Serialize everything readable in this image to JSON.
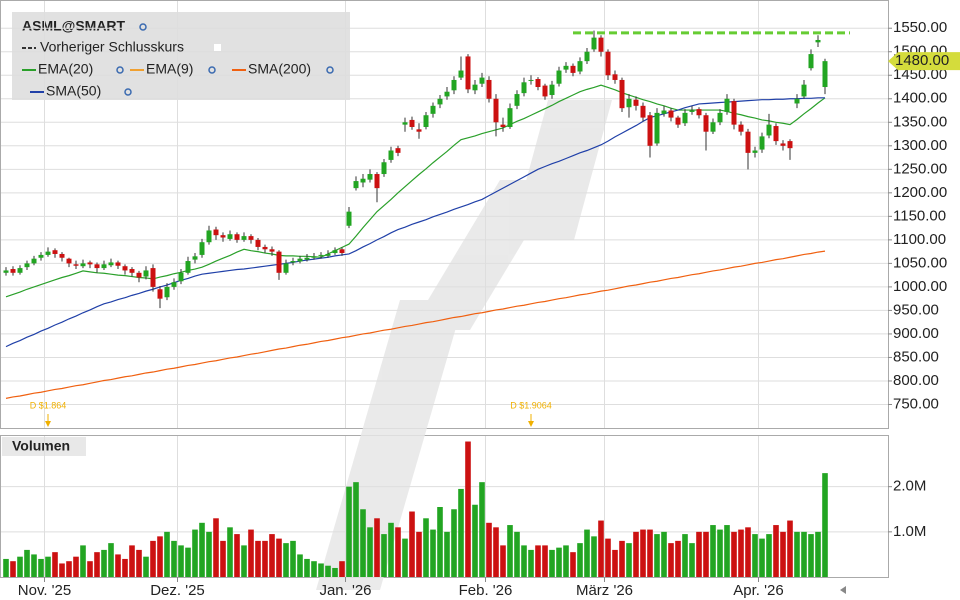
{
  "chart_data": {
    "type": "candlestick",
    "title": "ASML@SMART",
    "grid": true,
    "up_color": "#22a522",
    "down_color": "#cc1111",
    "categories": [
      null,
      null,
      null,
      null,
      null,
      null,
      "Nov. '25",
      null,
      null,
      null,
      null,
      null,
      null,
      null,
      null,
      null,
      null,
      null,
      null,
      null,
      null,
      null,
      null,
      null,
      null,
      "Dez. '25",
      null,
      null,
      null,
      null,
      null,
      null,
      null,
      null,
      null,
      null,
      null,
      null,
      null,
      null,
      null,
      null,
      null,
      null,
      null,
      null,
      null,
      null,
      null,
      "Jan. '26",
      null,
      null,
      null,
      null,
      null,
      null,
      null,
      null,
      null,
      null,
      null,
      null,
      null,
      null,
      null,
      null,
      null,
      null,
      null,
      "Feb. '26",
      null,
      null,
      null,
      null,
      null,
      null,
      null,
      null,
      null,
      null,
      null,
      null,
      null,
      null,
      null,
      null,
      "März '26",
      null,
      null,
      null,
      null,
      null,
      null,
      null,
      null,
      null,
      null,
      null,
      null,
      null,
      null,
      null,
      null,
      null,
      null,
      null,
      null,
      null,
      "Apr. '26",
      null,
      null,
      null,
      null,
      null,
      null,
      null,
      null,
      null
    ],
    "open": [
      1030,
      1038,
      1030,
      1042,
      1050,
      1062,
      1068,
      1078,
      1070,
      1060,
      1048,
      1044,
      1052,
      1048,
      1040,
      1046,
      1052,
      1044,
      1038,
      1030,
      1022,
      1040,
      995,
      978,
      1000,
      1012,
      1030,
      1058,
      1068,
      1095,
      1122,
      1110,
      1102,
      1112,
      1100,
      1108,
      1100,
      1085,
      1080,
      1075,
      1030,
      1052,
      1054,
      1058,
      1062,
      1066,
      1066,
      1072,
      1080,
      1130,
      1210,
      1222,
      1228,
      1240,
      1240,
      1270,
      1295,
      1345,
      1355,
      1335,
      1340,
      1368,
      1388,
      1405,
      1418,
      1445,
      1490,
      1418,
      1432,
      1440,
      1400,
      1345,
      1340,
      1385,
      1412,
      1438,
      1442,
      1428,
      1408,
      1432,
      1462,
      1470,
      1458,
      1480,
      1505,
      1530,
      1500,
      1452,
      1440,
      1382,
      1398,
      1385,
      1365,
      1305,
      1368,
      1375,
      1360,
      1348,
      1372,
      1378,
      1365,
      1330,
      1350,
      1372,
      1395,
      1345,
      1330,
      1285,
      1292,
      1322,
      1342,
      1305,
      1310,
      1390,
      1405,
      1465,
      1520,
      1425
    ],
    "high": [
      1042,
      1044,
      1046,
      1056,
      1066,
      1074,
      1084,
      1082,
      1074,
      1062,
      1056,
      1058,
      1056,
      1052,
      1056,
      1060,
      1056,
      1048,
      1042,
      1034,
      1044,
      1048,
      1002,
      1008,
      1018,
      1038,
      1064,
      1072,
      1102,
      1130,
      1128,
      1116,
      1120,
      1116,
      1116,
      1112,
      1104,
      1090,
      1086,
      1078,
      1058,
      1062,
      1066,
      1070,
      1072,
      1074,
      1078,
      1084,
      1084,
      1170,
      1235,
      1240,
      1250,
      1244,
      1272,
      1298,
      1300,
      1360,
      1362,
      1348,
      1372,
      1392,
      1408,
      1425,
      1448,
      1490,
      1495,
      1440,
      1455,
      1448,
      1410,
      1360,
      1390,
      1418,
      1445,
      1450,
      1446,
      1432,
      1438,
      1468,
      1478,
      1475,
      1488,
      1508,
      1545,
      1535,
      1505,
      1460,
      1445,
      1410,
      1405,
      1392,
      1372,
      1380,
      1385,
      1380,
      1364,
      1378,
      1385,
      1382,
      1370,
      1358,
      1378,
      1410,
      1400,
      1352,
      1336,
      1298,
      1328,
      1368,
      1348,
      1312,
      1314,
      1410,
      1440,
      1505,
      1535,
      1485
    ],
    "low": [
      1024,
      1024,
      1026,
      1036,
      1046,
      1056,
      1064,
      1062,
      1054,
      1042,
      1038,
      1040,
      1040,
      1030,
      1036,
      1042,
      1038,
      1026,
      1022,
      1010,
      1016,
      990,
      955,
      972,
      994,
      1006,
      1026,
      1050,
      1062,
      1090,
      1100,
      1096,
      1098,
      1094,
      1096,
      1092,
      1078,
      1072,
      1066,
      1015,
      1026,
      1046,
      1050,
      1054,
      1058,
      1060,
      1062,
      1068,
      1066,
      1125,
      1205,
      1212,
      1222,
      1180,
      1234,
      1264,
      1278,
      1330,
      1334,
      1315,
      1335,
      1360,
      1380,
      1398,
      1410,
      1440,
      1412,
      1410,
      1425,
      1392,
      1320,
      1330,
      1336,
      1378,
      1405,
      1430,
      1418,
      1398,
      1400,
      1426,
      1455,
      1448,
      1452,
      1474,
      1500,
      1490,
      1440,
      1432,
      1372,
      1360,
      1375,
      1352,
      1275,
      1300,
      1362,
      1352,
      1338,
      1342,
      1366,
      1358,
      1290,
      1325,
      1344,
      1366,
      1335,
      1322,
      1250,
      1275,
      1285,
      1316,
      1302,
      1290,
      1270,
      1380,
      1400,
      1460,
      1510,
      1410
    ],
    "close": [
      1035,
      1030,
      1040,
      1050,
      1060,
      1068,
      1075,
      1070,
      1062,
      1050,
      1045,
      1050,
      1048,
      1040,
      1048,
      1052,
      1045,
      1035,
      1030,
      1020,
      1035,
      1000,
      975,
      1000,
      1010,
      1030,
      1055,
      1065,
      1095,
      1120,
      1110,
      1105,
      1112,
      1100,
      1108,
      1100,
      1085,
      1080,
      1075,
      1030,
      1050,
      1055,
      1060,
      1062,
      1065,
      1068,
      1070,
      1078,
      1072,
      1160,
      1225,
      1230,
      1240,
      1210,
      1265,
      1290,
      1285,
      1350,
      1340,
      1330,
      1365,
      1385,
      1400,
      1415,
      1440,
      1460,
      1420,
      1430,
      1445,
      1400,
      1350,
      1340,
      1380,
      1410,
      1435,
      1440,
      1425,
      1405,
      1430,
      1460,
      1470,
      1455,
      1480,
      1500,
      1530,
      1500,
      1450,
      1440,
      1380,
      1400,
      1385,
      1360,
      1300,
      1370,
      1375,
      1360,
      1345,
      1370,
      1375,
      1365,
      1330,
      1350,
      1370,
      1400,
      1345,
      1330,
      1285,
      1290,
      1320,
      1345,
      1310,
      1300,
      1295,
      1400,
      1430,
      1495,
      1525,
      1480
    ],
    "series": [
      {
        "name": "EMA(20)",
        "color": "#2aa02a",
        "values": [
          979,
          984,
          989,
          995,
          1000,
          1005,
          1010,
          1015,
          1020,
          1024,
          1029,
          1034,
          1032,
          1030,
          1029,
          1027,
          1025,
          1024,
          1022,
          1020,
          1019,
          1017,
          1021,
          1024,
          1028,
          1031,
          1035,
          1038,
          1042,
          1048,
          1055,
          1061,
          1067,
          1074,
          1080,
          1077,
          1075,
          1072,
          1070,
          1067,
          1066,
          1066,
          1065,
          1065,
          1064,
          1063,
          1070,
          1077,
          1084,
          1091,
          1108,
          1126,
          1143,
          1160,
          1173,
          1186,
          1200,
          1213,
          1226,
          1239,
          1251,
          1264,
          1276,
          1288,
          1301,
          1313,
          1317,
          1321,
          1326,
          1330,
          1334,
          1338,
          1345,
          1352,
          1358,
          1365,
          1372,
          1379,
          1386,
          1394,
          1401,
          1408,
          1415,
          1420,
          1424,
          1429,
          1424,
          1419,
          1413,
          1408,
          1403,
          1398,
          1394,
          1389,
          1385,
          1380,
          1376,
          1376,
          1376,
          1376,
          1376,
          1376,
          1376,
          1373,
          1369,
          1366,
          1362,
          1359,
          1355,
          1353,
          1350,
          1348,
          1345,
          1356,
          1368,
          1379,
          1391,
          1402
        ]
      },
      {
        "name": "EMA(9)",
        "color": "#f0a030"
      },
      {
        "name": "SMA(200)",
        "color": "#f06010",
        "values": [
          763,
          766,
          768,
          771,
          774,
          776,
          779,
          782,
          784,
          787,
          790,
          792,
          795,
          798,
          801,
          803,
          806,
          809,
          811,
          814,
          817,
          819,
          822,
          825,
          827,
          830,
          833,
          835,
          838,
          841,
          843,
          846,
          849,
          851,
          854,
          857,
          859,
          862,
          865,
          868,
          870,
          873,
          876,
          878,
          881,
          884,
          886,
          889,
          892,
          894,
          897,
          900,
          902,
          905,
          908,
          910,
          913,
          916,
          918,
          921,
          924,
          926,
          929,
          932,
          935,
          937,
          940,
          943,
          945,
          948,
          951,
          953,
          956,
          959,
          961,
          964,
          967,
          969,
          972,
          975,
          977,
          980,
          983,
          985,
          988,
          991,
          993,
          996,
          999,
          1002,
          1004,
          1007,
          1010,
          1012,
          1015,
          1018,
          1020,
          1023,
          1026,
          1028,
          1031,
          1034,
          1036,
          1039,
          1042,
          1044,
          1047,
          1050,
          1052,
          1055,
          1058,
          1060,
          1063,
          1066,
          1069,
          1071,
          1074,
          1076
        ]
      },
      {
        "name": "SMA(50)",
        "color": "#2040a8",
        "values": [
          873,
          880,
          886,
          893,
          899,
          906,
          912,
          919,
          925,
          932,
          938,
          945,
          951,
          958,
          964,
          968,
          973,
          977,
          982,
          986,
          991,
          995,
          1000,
          1004,
          1009,
          1014,
          1018,
          1023,
          1027,
          1029,
          1031,
          1033,
          1035,
          1037,
          1038,
          1040,
          1042,
          1044,
          1046,
          1048,
          1050,
          1052,
          1055,
          1057,
          1059,
          1061,
          1063,
          1066,
          1068,
          1070,
          1077,
          1085,
          1092,
          1100,
          1107,
          1115,
          1122,
          1127,
          1133,
          1138,
          1143,
          1149,
          1154,
          1159,
          1165,
          1170,
          1175,
          1181,
          1186,
          1194,
          1202,
          1210,
          1218,
          1226,
          1234,
          1242,
          1250,
          1256,
          1262,
          1267,
          1273,
          1279,
          1285,
          1290,
          1296,
          1302,
          1310,
          1319,
          1327,
          1335,
          1343,
          1352,
          1360,
          1364,
          1368,
          1372,
          1376,
          1381,
          1385,
          1389,
          1390,
          1391,
          1392,
          1393,
          1394,
          1395,
          1396,
          1397,
          1398,
          1398,
          1399,
          1399,
          1400,
          1400,
          1401,
          1401,
          1402,
          1402
        ]
      }
    ],
    "prev_close": {
      "name": "Vorheriger Schlusskurs",
      "value": 1540,
      "color": "#66cc33"
    },
    "last_price": {
      "value": 1480,
      "label": "1480.00",
      "color": "#d4dc3c"
    },
    "dividends": [
      {
        "label": "D $1.864",
        "category": 6
      },
      {
        "label": "D $1.9064",
        "category": 75
      }
    ],
    "dividend_color": "#f0b000",
    "ylim": [
      700,
      1610
    ],
    "yticks": [
      {
        "value": 750,
        "label": "750.00"
      },
      {
        "value": 800,
        "label": "800.00"
      },
      {
        "value": 850,
        "label": "850.00"
      },
      {
        "value": 900,
        "label": "900.00"
      },
      {
        "value": 950,
        "label": "950.00"
      },
      {
        "value": 1000,
        "label": "1000.00"
      },
      {
        "value": 1050,
        "label": "1050.00"
      },
      {
        "value": 1100,
        "label": "1100.00"
      },
      {
        "value": 1150,
        "label": "1150.00"
      },
      {
        "value": 1200,
        "label": "1200.00"
      },
      {
        "value": 1250,
        "label": "1250.00"
      },
      {
        "value": 1300,
        "label": "1300.00"
      },
      {
        "value": 1350,
        "label": "1350.00"
      },
      {
        "value": 1400,
        "label": "1400.00"
      },
      {
        "value": 1450,
        "label": "1450.00"
      },
      {
        "value": 1500,
        "label": "1500.00"
      },
      {
        "value": 1550,
        "label": "1550.00"
      }
    ],
    "volume": {
      "title": "Volumen",
      "values": [
        400000,
        350000,
        450000,
        600000,
        500000,
        400000,
        450000,
        550000,
        300000,
        350000,
        450000,
        700000,
        350000,
        550000,
        600000,
        750000,
        500000,
        400000,
        700000,
        600000,
        450000,
        800000,
        900000,
        1000000,
        800000,
        700000,
        650000,
        1050000,
        1200000,
        1000000,
        1300000,
        800000,
        1100000,
        950000,
        700000,
        1050000,
        800000,
        800000,
        950000,
        850000,
        750000,
        800000,
        500000,
        400000,
        350000,
        300000,
        250000,
        200000,
        350000,
        2000000,
        2100000,
        1500000,
        1100000,
        1300000,
        950000,
        1200000,
        1100000,
        850000,
        1450000,
        1000000,
        1300000,
        1050000,
        1550000,
        1000000,
        1500000,
        1950000,
        3000000,
        1600000,
        2100000,
        1200000,
        1100000,
        700000,
        1150000,
        1000000,
        700000,
        600000,
        700000,
        700000,
        600000,
        650000,
        700000,
        550000,
        750000,
        1050000,
        900000,
        1250000,
        850000,
        600000,
        800000,
        750000,
        1000000,
        1050000,
        1050000,
        950000,
        1000000,
        750000,
        800000,
        950000,
        750000,
        1000000,
        1000000,
        1150000,
        1050000,
        1150000,
        1000000,
        1050000,
        1100000,
        950000,
        850000,
        950000,
        1150000,
        1000000,
        1250000,
        1000000,
        1000000,
        950000,
        1000000,
        2300000
      ],
      "ylim": [
        0,
        3100000
      ],
      "yticks": [
        {
          "value": 1000000,
          "label": "1.0M"
        },
        {
          "value": 2000000,
          "label": "2.0M"
        }
      ]
    }
  }
}
